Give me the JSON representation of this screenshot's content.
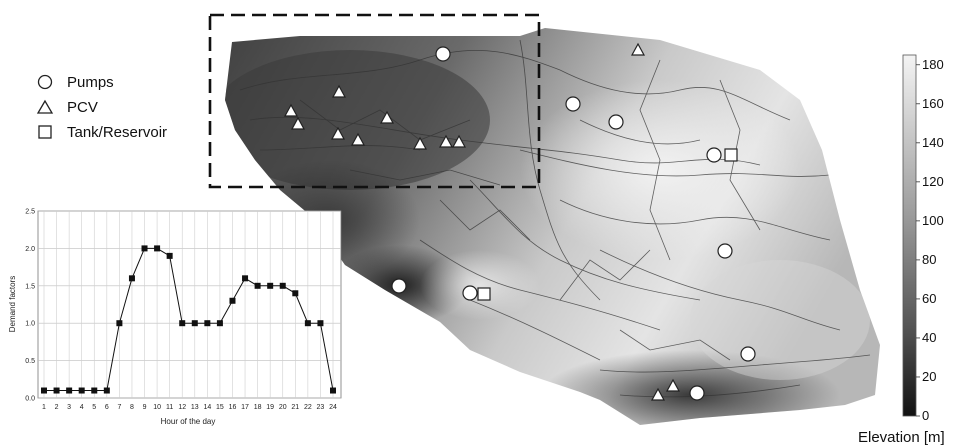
{
  "legend": {
    "pumps_label": "Pumps",
    "pcv_label": "PCV",
    "tank_label": "Tank/Reservoir"
  },
  "colorbar": {
    "title": "Elevation [m]",
    "ticks": [
      "0",
      "20",
      "40",
      "60",
      "80",
      "100",
      "120",
      "140",
      "160",
      "180"
    ],
    "min": 0,
    "max": 185,
    "color_low": "#111111",
    "color_high": "#f4f4f4"
  },
  "chart_data": {
    "type": "line",
    "xlabel": "Hour of the day",
    "ylabel": "Demand factors",
    "x": [
      1,
      2,
      3,
      4,
      5,
      6,
      7,
      8,
      9,
      10,
      11,
      12,
      13,
      14,
      15,
      16,
      17,
      18,
      19,
      20,
      21,
      22,
      23,
      24
    ],
    "y": [
      0.1,
      0.1,
      0.1,
      0.1,
      0.1,
      0.1,
      1.0,
      1.6,
      2.0,
      2.0,
      1.9,
      1.0,
      1.0,
      1.0,
      1.0,
      1.3,
      1.6,
      1.5,
      1.5,
      1.5,
      1.4,
      1.0,
      1.0,
      0.1
    ],
    "xticks": [
      "1",
      "2",
      "3",
      "4",
      "5",
      "6",
      "7",
      "8",
      "9",
      "10",
      "11",
      "12",
      "13",
      "14",
      "15",
      "16",
      "17",
      "18",
      "19",
      "20",
      "21",
      "22",
      "23",
      "24"
    ],
    "yticks": [
      "0.0",
      "0.5",
      "1.0",
      "1.5",
      "2.0",
      "2.5"
    ],
    "ylim": [
      0,
      2.5
    ],
    "grid": true,
    "marker": "square"
  }
}
